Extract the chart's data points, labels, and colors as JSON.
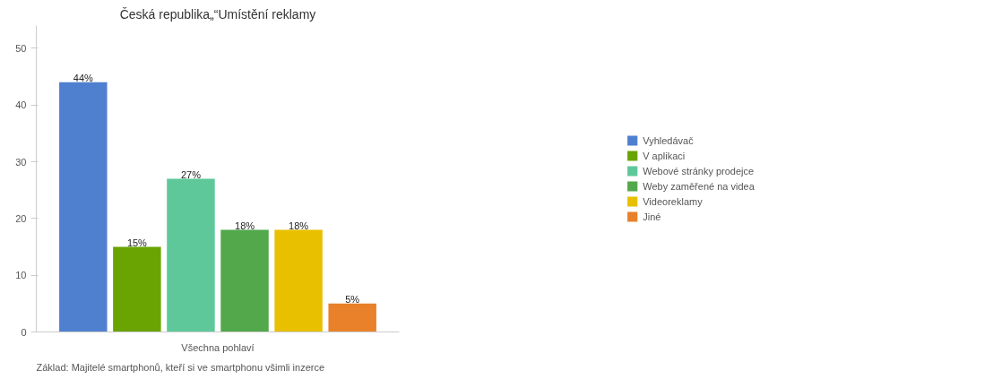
{
  "chart_data": {
    "type": "bar",
    "title": "Česká republika„“Umístění reklamy",
    "categories": [
      "Všechna pohlaví"
    ],
    "series": [
      {
        "name": "Vyhledávač",
        "color": "#4f7fcf",
        "values": [
          44
        ],
        "value_labels": [
          "44%"
        ]
      },
      {
        "name": "V aplikaci",
        "color": "#69a402",
        "values": [
          15
        ],
        "value_labels": [
          "15%"
        ]
      },
      {
        "name": "Webové stránky prodejce",
        "color": "#5ec89a",
        "values": [
          27
        ],
        "value_labels": [
          "27%"
        ]
      },
      {
        "name": "Weby zaměřené na videa",
        "color": "#52a84b",
        "values": [
          18
        ],
        "value_labels": [
          "18%"
        ]
      },
      {
        "name": "Videoreklamy",
        "color": "#e8c000",
        "values": [
          18
        ],
        "value_labels": [
          "18%"
        ]
      },
      {
        "name": "Jiné",
        "color": "#e8812a",
        "values": [
          5
        ],
        "value_labels": [
          "5%"
        ]
      }
    ],
    "ylim": [
      0,
      54
    ],
    "yticks": [
      0,
      10,
      20,
      30,
      40,
      50
    ],
    "grid": false,
    "legend": "right",
    "annotations": [
      "Základ:  Majitelé smartphonů, kteří si ve smartphonu všimli inzerce"
    ]
  }
}
